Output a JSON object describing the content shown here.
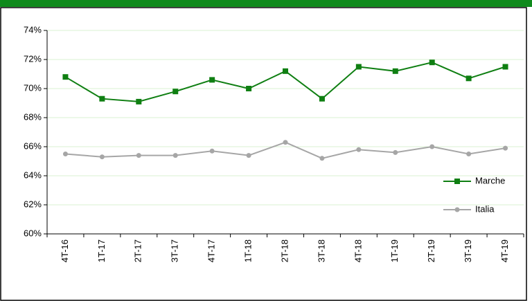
{
  "chart_data": {
    "type": "line",
    "categories": [
      "4T-16",
      "1T-17",
      "2T-17",
      "3T-17",
      "4T-17",
      "1T-18",
      "2T-18",
      "3T-18",
      "4T-18",
      "1T-19",
      "2T-19",
      "3T-19",
      "4T-19"
    ],
    "series": [
      {
        "name": "Marche",
        "color": "#0f7f12",
        "marker": "square",
        "values": [
          70.8,
          69.3,
          69.1,
          69.8,
          70.6,
          70.0,
          71.2,
          69.3,
          71.5,
          71.2,
          71.8,
          70.7,
          71.5
        ]
      },
      {
        "name": "Italia",
        "color": "#a6a6a6",
        "marker": "circle",
        "values": [
          65.5,
          65.3,
          65.4,
          65.4,
          65.7,
          65.4,
          66.3,
          65.2,
          65.8,
          65.6,
          66.0,
          65.5,
          65.9
        ]
      }
    ],
    "ylim": [
      60,
      74
    ],
    "yticks": [
      {
        "value": 60,
        "label": "60%"
      },
      {
        "value": 62,
        "label": "62%"
      },
      {
        "value": 64,
        "label": "64%"
      },
      {
        "value": 66,
        "label": "66%"
      },
      {
        "value": 68,
        "label": "68%"
      },
      {
        "value": 70,
        "label": "70%"
      },
      {
        "value": 72,
        "label": "72%"
      },
      {
        "value": 74,
        "label": "74%"
      }
    ],
    "grid": true,
    "legend": "right"
  }
}
